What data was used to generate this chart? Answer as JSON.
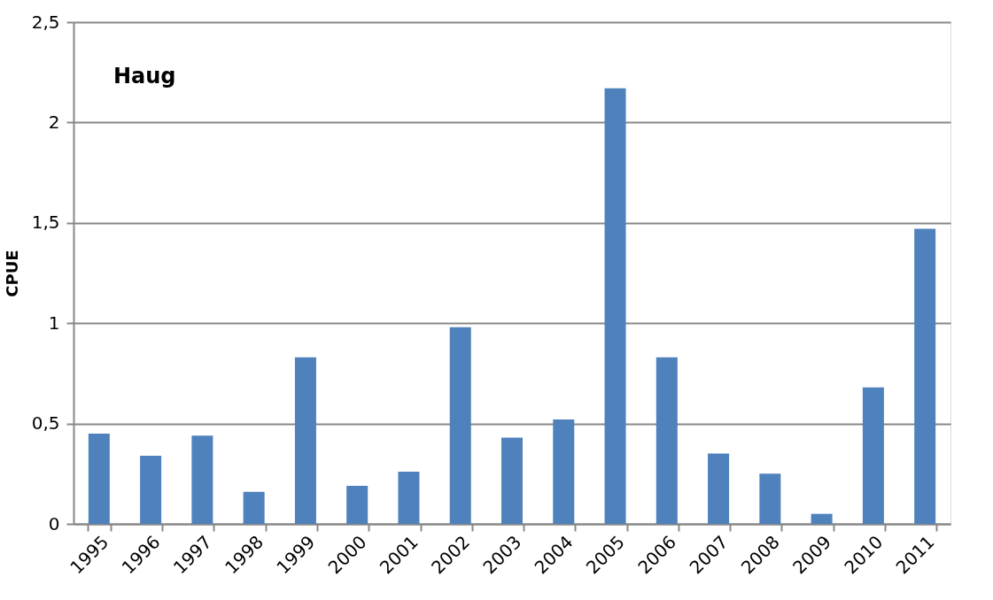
{
  "chart_data": {
    "type": "bar",
    "title": "Haug",
    "ylabel": "CPUE",
    "categories": [
      "1995",
      "1996",
      "1997",
      "1998",
      "1999",
      "2000",
      "2001",
      "2002",
      "2003",
      "2004",
      "2005",
      "2006",
      "2007",
      "2008",
      "2009",
      "2010",
      "2011"
    ],
    "values": [
      0.45,
      0.34,
      0.44,
      0.16,
      0.83,
      0.19,
      0.26,
      0.98,
      0.43,
      0.52,
      2.17,
      0.83,
      0.35,
      0.25,
      0.05,
      0.68,
      1.47
    ],
    "color": "#4f81bd",
    "ylim": [
      0,
      2.5
    ],
    "yticks": [
      0,
      {
        "value": 0.5,
        "label": "0,5"
      },
      1,
      {
        "value": 1.5,
        "label": "1,5"
      },
      2,
      {
        "value": 2.5,
        "label": "2,5"
      }
    ],
    "grid": "y"
  }
}
